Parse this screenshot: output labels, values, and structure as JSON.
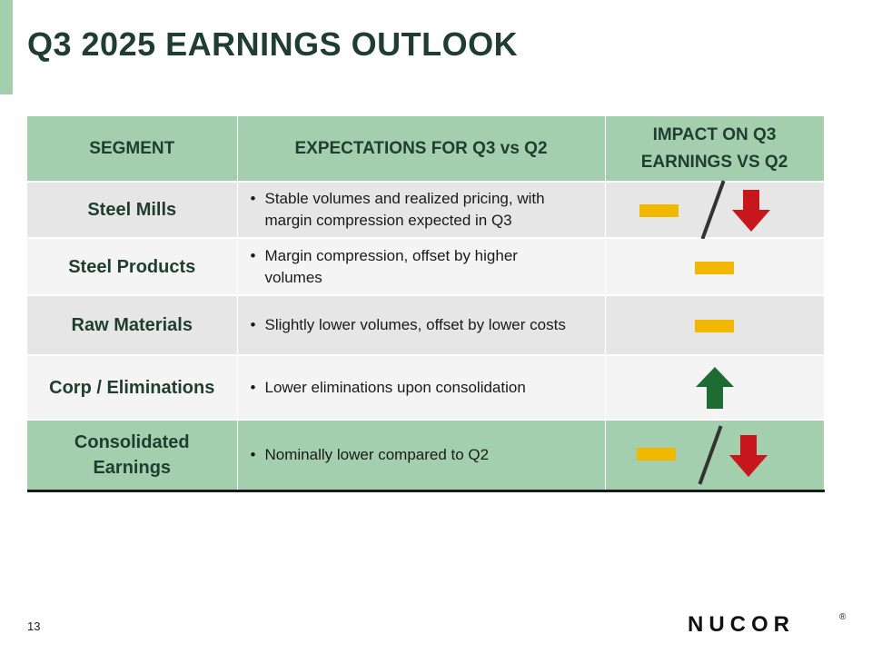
{
  "slide": {
    "title": "Q3 2025 EARNINGS OUTLOOK",
    "page_number": "13",
    "logo_text": "NUCOR",
    "logo_registered": "®"
  },
  "colors": {
    "brand_green": "#a3cfae",
    "title_green": "#1f3d30",
    "neutral_dash": "#f2b800",
    "down_arrow": "#c8161d",
    "up_arrow": "#1e6b34"
  },
  "table": {
    "headers": {
      "segment": "SEGMENT",
      "expectations": "EXPECTATIONS FOR Q3 vs Q2",
      "impact_line1": "IMPACT ON Q3",
      "impact_line2": "EARNINGS VS Q2"
    },
    "rows": [
      {
        "segment": "Steel Mills",
        "expectation_line1": "Stable volumes and realized pricing, with",
        "expectation_line2": "margin compression expected in Q3",
        "impact_icons": [
          "neutral-dash-icon",
          "slash-icon",
          "down-arrow-icon"
        ]
      },
      {
        "segment": "Steel Products",
        "expectation_line1": "Margin compression, offset by higher",
        "expectation_line2": "volumes",
        "impact_icons": [
          "neutral-dash-icon"
        ]
      },
      {
        "segment": "Raw Materials",
        "expectation_line1": "Slightly lower volumes, offset by lower costs",
        "impact_icons": [
          "neutral-dash-icon"
        ]
      },
      {
        "segment": "Corp / Eliminations",
        "expectation_line1": "Lower eliminations upon consolidation",
        "impact_icons": [
          "up-arrow-icon"
        ]
      },
      {
        "segment_line1": "Consolidated",
        "segment_line2": "Earnings",
        "expectation_line1": "Nominally lower compared to Q2",
        "impact_icons": [
          "neutral-dash-icon",
          "slash-icon",
          "down-arrow-icon"
        ]
      }
    ],
    "bullet_glyph": "•"
  }
}
